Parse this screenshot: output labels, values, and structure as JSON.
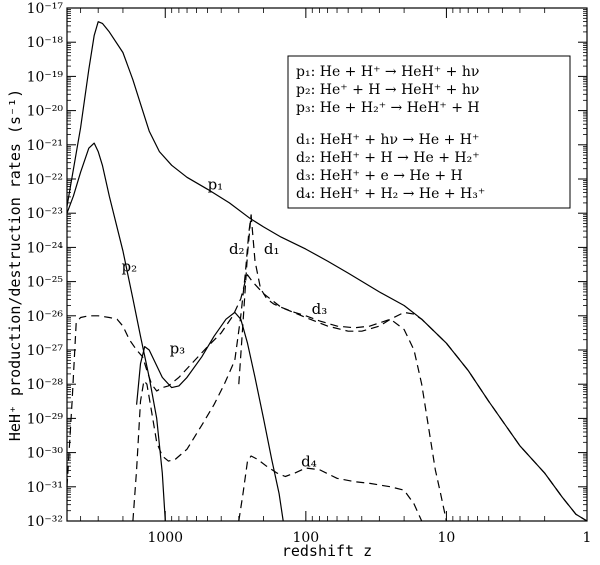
{
  "chart_data": {
    "type": "line",
    "title": "",
    "xlabel": "redshift z",
    "ylabel": "HeH⁺ production/destruction rates (s⁻¹)",
    "x_scale": "log",
    "x_reversed": true,
    "y_scale": "log",
    "xlim": [
      5000,
      1
    ],
    "ylim": [
      1e-32,
      1e-17
    ],
    "x_ticks": [
      {
        "value": 1000,
        "label": "1000"
      },
      {
        "value": 100,
        "label": "100"
      },
      {
        "value": 10,
        "label": "10"
      },
      {
        "value": 1,
        "label": "1"
      }
    ],
    "y_ticks": [
      {
        "exp": -17,
        "label": "10⁻¹⁷"
      },
      {
        "exp": -18,
        "label": "10⁻¹⁸"
      },
      {
        "exp": -19,
        "label": "10⁻¹⁹"
      },
      {
        "exp": -20,
        "label": "10⁻²⁰"
      },
      {
        "exp": -21,
        "label": "10⁻²¹"
      },
      {
        "exp": -22,
        "label": "10⁻²²"
      },
      {
        "exp": -23,
        "label": "10⁻²³"
      },
      {
        "exp": -24,
        "label": "10⁻²⁴"
      },
      {
        "exp": -25,
        "label": "10⁻²⁵"
      },
      {
        "exp": -26,
        "label": "10⁻²⁶"
      },
      {
        "exp": -27,
        "label": "10⁻²⁷"
      },
      {
        "exp": -28,
        "label": "10⁻²⁸"
      },
      {
        "exp": -29,
        "label": "10⁻²⁹"
      },
      {
        "exp": -30,
        "label": "10⁻³⁰"
      },
      {
        "exp": -31,
        "label": "10⁻³¹"
      },
      {
        "exp": -32,
        "label": "10⁻³²"
      }
    ],
    "grid": false,
    "legend_position": "top-right",
    "legend": [
      "p₁: He + H⁺ → HeH⁺ + hν",
      "p₂: He⁺ + H → HeH⁺ + hν",
      "p₃: He + H₂⁺ → HeH⁺ + H",
      "d₁: HeH⁺ + hν → He + H⁺",
      "d₂: HeH⁺ + H → He + H₂⁺",
      "d₃: HeH⁺ + e → He + H",
      "d₄: HeH⁺ + H₂ → He + H₃⁺"
    ],
    "series": [
      {
        "name": "p₁",
        "label": "p₁",
        "style": "solid",
        "label_at": {
          "x": 440,
          "logy": -22.3
        },
        "points": [
          [
            5000,
            -22.8
          ],
          [
            4000,
            -20.5
          ],
          [
            3500,
            -18.8
          ],
          [
            3200,
            -17.8
          ],
          [
            3000,
            -17.4
          ],
          [
            2800,
            -17.45
          ],
          [
            2500,
            -17.7
          ],
          [
            2000,
            -18.3
          ],
          [
            1700,
            -19.1
          ],
          [
            1500,
            -19.8
          ],
          [
            1300,
            -20.6
          ],
          [
            1100,
            -21.2
          ],
          [
            900,
            -21.6
          ],
          [
            700,
            -21.95
          ],
          [
            500,
            -22.3
          ],
          [
            350,
            -22.7
          ],
          [
            250,
            -23.15
          ],
          [
            200,
            -23.4
          ],
          [
            150,
            -23.7
          ],
          [
            100,
            -24.05
          ],
          [
            70,
            -24.4
          ],
          [
            50,
            -24.75
          ],
          [
            30,
            -25.3
          ],
          [
            20,
            -25.7
          ],
          [
            15,
            -26.1
          ],
          [
            10,
            -26.8
          ],
          [
            7,
            -27.6
          ],
          [
            5,
            -28.5
          ],
          [
            3,
            -29.8
          ],
          [
            2,
            -30.6
          ],
          [
            1.5,
            -31.3
          ],
          [
            1.2,
            -31.8
          ],
          [
            1,
            -32
          ]
        ]
      },
      {
        "name": "p₂",
        "label": "p₂",
        "style": "solid",
        "label_at": {
          "x": 1800,
          "logy": -24.7
        },
        "points": [
          [
            5000,
            -23.0
          ],
          [
            4500,
            -22.5
          ],
          [
            4000,
            -21.8
          ],
          [
            3500,
            -21.1
          ],
          [
            3200,
            -20.95
          ],
          [
            3000,
            -21.2
          ],
          [
            2800,
            -21.6
          ],
          [
            2500,
            -22.5
          ],
          [
            2000,
            -24.1
          ],
          [
            1700,
            -25.5
          ],
          [
            1500,
            -26.6
          ],
          [
            1300,
            -27.8
          ],
          [
            1150,
            -29.0
          ],
          [
            1050,
            -30.6
          ],
          [
            1000,
            -32
          ]
        ]
      },
      {
        "name": "p₃",
        "label": "p₃",
        "style": "solid",
        "label_at": {
          "x": 820,
          "logy": -27.1
        },
        "points": [
          [
            1600,
            -28.6
          ],
          [
            1500,
            -27.4
          ],
          [
            1400,
            -26.9
          ],
          [
            1300,
            -27.0
          ],
          [
            1200,
            -27.3
          ],
          [
            1050,
            -27.8
          ],
          [
            900,
            -28.1
          ],
          [
            800,
            -28.05
          ],
          [
            700,
            -27.8
          ],
          [
            550,
            -27.2
          ],
          [
            450,
            -26.6
          ],
          [
            370,
            -26.1
          ],
          [
            320,
            -25.9
          ],
          [
            290,
            -26.1
          ],
          [
            260,
            -26.8
          ],
          [
            230,
            -27.8
          ],
          [
            200,
            -29.0
          ],
          [
            175,
            -30.2
          ],
          [
            155,
            -31.2
          ],
          [
            145,
            -32
          ]
        ]
      },
      {
        "name": "d₁",
        "label": "d₁",
        "style": "dashed",
        "label_at": {
          "x": 175,
          "logy": -24.2
        },
        "points": [
          [
            300,
            -28.0
          ],
          [
            280,
            -26.2
          ],
          [
            260,
            -24.2
          ],
          [
            245,
            -23.05
          ],
          [
            230,
            -24.4
          ],
          [
            210,
            -25.2
          ],
          [
            190,
            -25.5
          ],
          [
            170,
            -25.65
          ],
          [
            150,
            -25.75
          ],
          [
            120,
            -25.9
          ],
          [
            100,
            -26.0
          ],
          [
            80,
            -26.15
          ],
          [
            60,
            -26.3
          ],
          [
            45,
            -26.35
          ],
          [
            35,
            -26.3
          ],
          [
            25,
            -26.1
          ],
          [
            20,
            -26.4
          ],
          [
            17,
            -27.0
          ],
          [
            15,
            -28.0
          ],
          [
            13,
            -29.6
          ],
          [
            12,
            -30.5
          ],
          [
            11,
            -31.2
          ],
          [
            10,
            -32
          ]
        ]
      },
      {
        "name": "d₂",
        "label": "d₂",
        "style": "dashed",
        "label_at": {
          "x": 310,
          "logy": -24.2
        },
        "points": [
          [
            1700,
            -32
          ],
          [
            1600,
            -30.5
          ],
          [
            1500,
            -28.5
          ],
          [
            1420,
            -27.9
          ],
          [
            1350,
            -28.0
          ],
          [
            1250,
            -28.8
          ],
          [
            1150,
            -29.7
          ],
          [
            1050,
            -30.1
          ],
          [
            950,
            -30.25
          ],
          [
            850,
            -30.2
          ],
          [
            700,
            -29.9
          ],
          [
            550,
            -29.2
          ],
          [
            450,
            -28.6
          ],
          [
            380,
            -28.0
          ],
          [
            320,
            -27.3
          ],
          [
            290,
            -26.0
          ],
          [
            270,
            -24.8
          ],
          [
            255,
            -23.6
          ],
          [
            245,
            -23.05
          ]
        ]
      },
      {
        "name": "d₃",
        "label": "d₃",
        "style": "dashed",
        "label_at": {
          "x": 80,
          "logy": -25.95
        },
        "points": [
          [
            5000,
            -31.0
          ],
          [
            4600,
            -28.5
          ],
          [
            4300,
            -26.2
          ],
          [
            4000,
            -26.05
          ],
          [
            3500,
            -26.0
          ],
          [
            3000,
            -26.0
          ],
          [
            2500,
            -26.05
          ],
          [
            2200,
            -26.1
          ],
          [
            2000,
            -26.3
          ],
          [
            1800,
            -26.7
          ],
          [
            1600,
            -27.0
          ],
          [
            1450,
            -27.2
          ],
          [
            1350,
            -27.6
          ],
          [
            1250,
            -28.0
          ],
          [
            1150,
            -28.2
          ],
          [
            1050,
            -28.1
          ],
          [
            950,
            -28.05
          ],
          [
            800,
            -27.8
          ],
          [
            650,
            -27.4
          ],
          [
            500,
            -26.9
          ],
          [
            400,
            -26.5
          ],
          [
            330,
            -26.0
          ],
          [
            290,
            -25.5
          ],
          [
            270,
            -25.0
          ],
          [
            260,
            -24.8
          ],
          [
            240,
            -25.0
          ],
          [
            200,
            -25.35
          ],
          [
            150,
            -25.75
          ],
          [
            100,
            -26.05
          ],
          [
            70,
            -26.3
          ],
          [
            50,
            -26.45
          ],
          [
            40,
            -26.45
          ],
          [
            30,
            -26.3
          ],
          [
            25,
            -26.1
          ],
          [
            20,
            -25.9
          ],
          [
            17,
            -25.95
          ],
          [
            15,
            -26.1
          ],
          [
            10,
            -26.8
          ],
          [
            7,
            -27.6
          ],
          [
            5,
            -28.5
          ],
          [
            3,
            -29.8
          ],
          [
            2,
            -30.6
          ],
          [
            1.5,
            -31.3
          ],
          [
            1.2,
            -31.8
          ],
          [
            1,
            -32
          ]
        ]
      },
      {
        "name": "d₄",
        "label": "d₄",
        "style": "dashed",
        "label_at": {
          "x": 95,
          "logy": -30.4
        },
        "points": [
          [
            300,
            -32
          ],
          [
            280,
            -31.2
          ],
          [
            260,
            -30.25
          ],
          [
            245,
            -30.1
          ],
          [
            220,
            -30.2
          ],
          [
            190,
            -30.4
          ],
          [
            160,
            -30.6
          ],
          [
            140,
            -30.7
          ],
          [
            120,
            -30.6
          ],
          [
            100,
            -30.45
          ],
          [
            80,
            -30.5
          ],
          [
            60,
            -30.75
          ],
          [
            45,
            -30.85
          ],
          [
            35,
            -30.9
          ],
          [
            25,
            -31.0
          ],
          [
            20,
            -31.1
          ],
          [
            17,
            -31.5
          ],
          [
            15,
            -32
          ]
        ]
      }
    ]
  }
}
